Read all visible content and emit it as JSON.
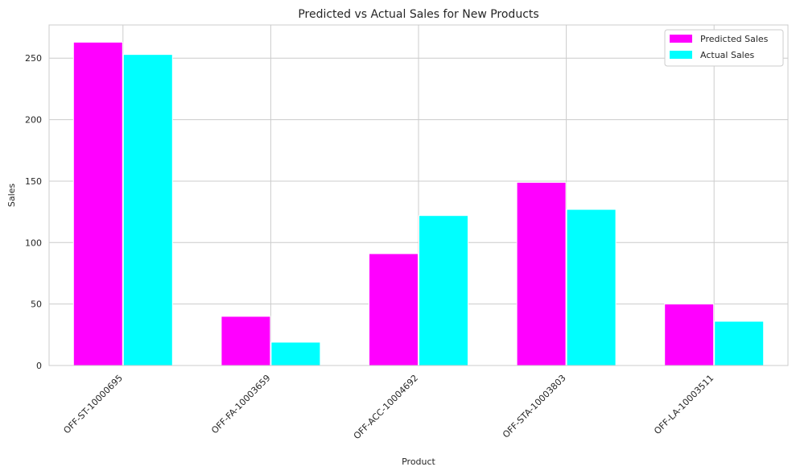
{
  "chart_data": {
    "type": "bar",
    "title": "Predicted vs Actual Sales for New Products",
    "xlabel": "Product",
    "ylabel": "Sales",
    "categories": [
      "OFF-ST-10000695",
      "OFF-FA-10003659",
      "OFF-ACC-10004692",
      "OFF-STA-10003803",
      "OFF-LA-10003511"
    ],
    "series": [
      {
        "name": "Predicted Sales",
        "color": "#ff00ff",
        "values": [
          263,
          40,
          91,
          149,
          50
        ]
      },
      {
        "name": "Actual Sales",
        "color": "#00ffff",
        "values": [
          253,
          19,
          122,
          127,
          36
        ]
      }
    ],
    "ylim": [
      0,
      277
    ],
    "yticks": [
      0,
      50,
      100,
      150,
      200,
      250
    ],
    "grid": true,
    "legend_position": "top-right"
  }
}
